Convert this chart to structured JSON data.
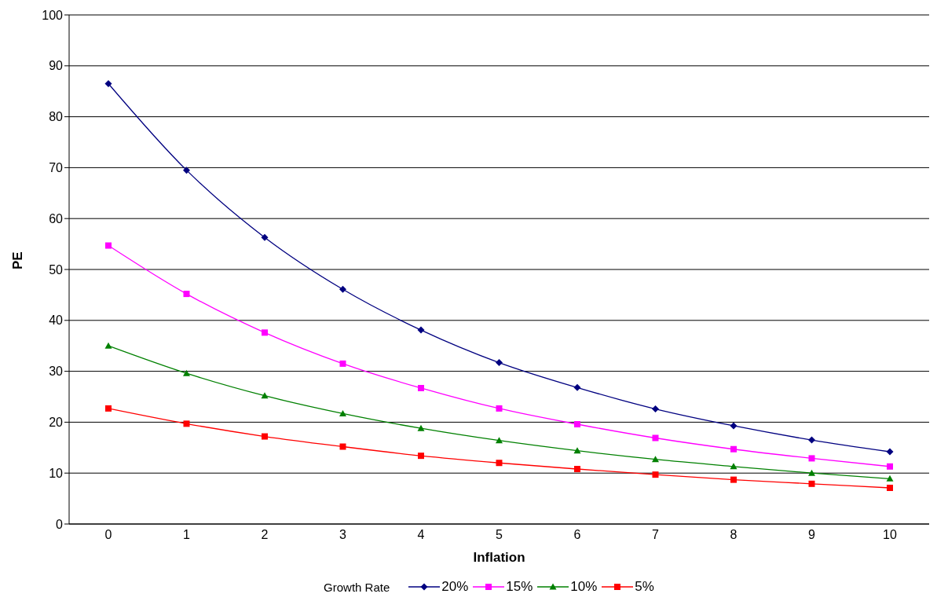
{
  "chart_data": {
    "type": "line",
    "xlabel": "Inflation",
    "ylabel": "PE",
    "legend_title": "Growth Rate",
    "categories": [
      "0",
      "1",
      "2",
      "3",
      "4",
      "5",
      "6",
      "7",
      "8",
      "9",
      "10"
    ],
    "ylim": [
      0,
      100
    ],
    "yticks": [
      0,
      10,
      20,
      30,
      40,
      50,
      60,
      70,
      80,
      90,
      100
    ],
    "grid": "y",
    "legend": "bottom",
    "series": [
      {
        "name": "20%",
        "color": "#000080",
        "marker": "diamond",
        "values": [
          86.5,
          69.5,
          56.3,
          46.1,
          38.1,
          31.7,
          26.8,
          22.6,
          19.3,
          16.5,
          14.2
        ]
      },
      {
        "name": "15%",
        "color": "#ff00ff",
        "marker": "square",
        "values": [
          54.7,
          45.2,
          37.6,
          31.5,
          26.7,
          22.7,
          19.6,
          16.9,
          14.7,
          12.9,
          11.3
        ]
      },
      {
        "name": "10%",
        "color": "#008000",
        "marker": "triangle",
        "values": [
          35.0,
          29.6,
          25.2,
          21.7,
          18.8,
          16.4,
          14.4,
          12.7,
          11.3,
          10.0,
          8.9
        ]
      },
      {
        "name": "5%",
        "color": "#ff0000",
        "marker": "square",
        "values": [
          22.7,
          19.7,
          17.2,
          15.2,
          13.4,
          12.0,
          10.8,
          9.7,
          8.7,
          7.9,
          7.1
        ]
      }
    ]
  }
}
